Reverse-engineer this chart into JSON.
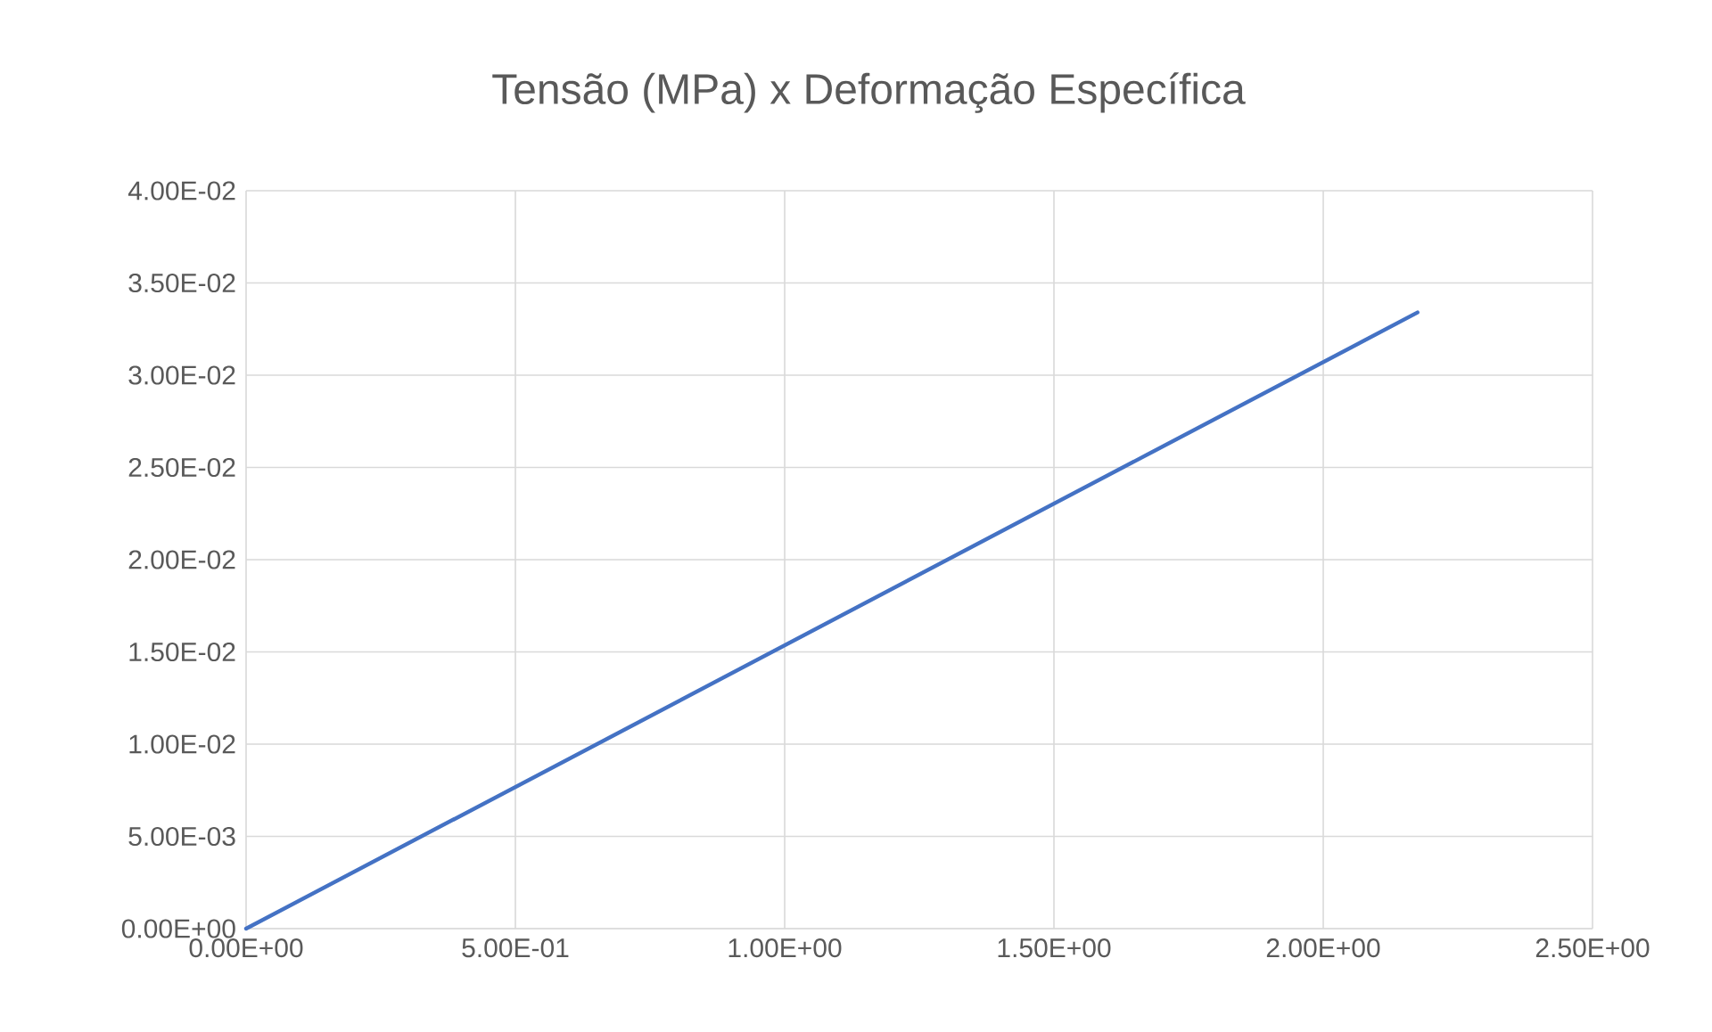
{
  "chart_data": {
    "type": "line",
    "title": "Tensão (MPa) x Deformação Específica",
    "series": [
      {
        "color": "#4472c4",
        "x": [
          0,
          2.175
        ],
        "values": [
          0,
          0.0334
        ]
      }
    ],
    "xlim": [
      0,
      2.5
    ],
    "ylim": [
      0,
      0.04
    ],
    "xticks": [
      {
        "value": 0,
        "label": "0.00E+00"
      },
      {
        "value": 0.5,
        "label": "5.00E-01"
      },
      {
        "value": 1.0,
        "label": "1.00E+00"
      },
      {
        "value": 1.5,
        "label": "1.50E+00"
      },
      {
        "value": 2.0,
        "label": "2.00E+00"
      },
      {
        "value": 2.5,
        "label": "2.50E+00"
      }
    ],
    "yticks": [
      {
        "value": 0,
        "label": "0.00E+00"
      },
      {
        "value": 0.005,
        "label": "5.00E-03"
      },
      {
        "value": 0.01,
        "label": "1.00E-02"
      },
      {
        "value": 0.015,
        "label": "1.50E-02"
      },
      {
        "value": 0.02,
        "label": "2.00E-02"
      },
      {
        "value": 0.025,
        "label": "2.50E-02"
      },
      {
        "value": 0.03,
        "label": "3.00E-02"
      },
      {
        "value": 0.035,
        "label": "3.50E-02"
      },
      {
        "value": 0.04,
        "label": "4.00E-02"
      }
    ],
    "grid": true,
    "marker": "none",
    "line_style": "solid"
  }
}
